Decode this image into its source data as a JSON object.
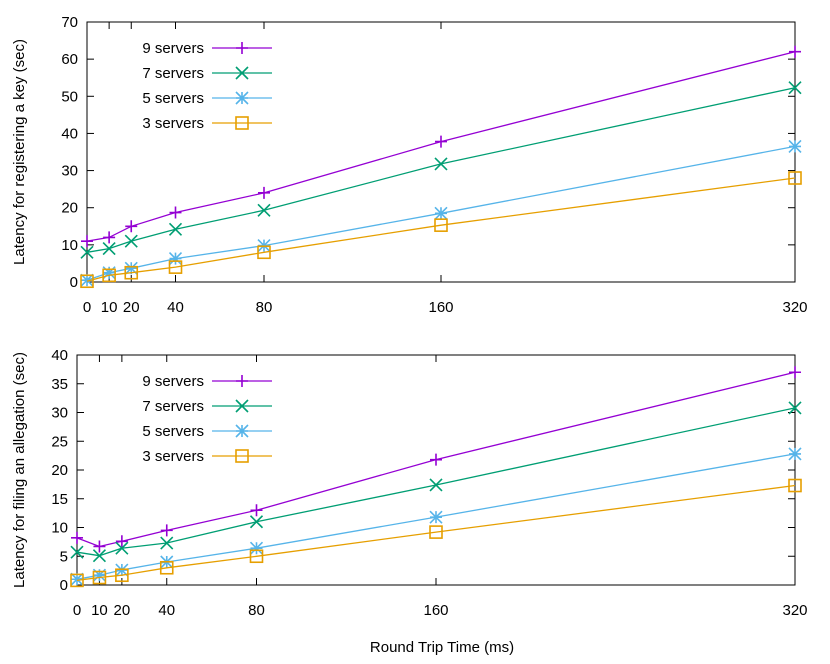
{
  "xlabel": "Round Trip Time (ms)",
  "colors": {
    "9 servers": "#9400d3",
    "7 servers": "#009e73",
    "5 servers": "#56b4e9",
    "3 servers": "#e69f00"
  },
  "chart_data": [
    {
      "type": "line",
      "title": "",
      "xlabel": "",
      "ylabel": "Latency for registering a key (sec)",
      "x": [
        0,
        10,
        20,
        40,
        80,
        160,
        320
      ],
      "x_ticks": [
        0,
        10,
        20,
        40,
        80,
        160,
        320
      ],
      "xlim": [
        0,
        320
      ],
      "ylim": [
        0,
        70
      ],
      "y_ticks": [
        0,
        10,
        20,
        30,
        40,
        50,
        60,
        70
      ],
      "grid": false,
      "legend_position": "top-left",
      "series": [
        {
          "name": "9 servers",
          "marker": "plus",
          "values": [
            11,
            12,
            15,
            18.7,
            24,
            37.8,
            62
          ]
        },
        {
          "name": "7 servers",
          "marker": "cross",
          "values": [
            8,
            9,
            11,
            14.2,
            19.3,
            31.8,
            52.3
          ]
        },
        {
          "name": "5 servers",
          "marker": "star",
          "values": [
            0.5,
            2.5,
            3.7,
            6.3,
            9.8,
            18.5,
            36.5
          ]
        },
        {
          "name": "3 servers",
          "marker": "square",
          "values": [
            0.2,
            1.8,
            2.5,
            4,
            8,
            15.3,
            28
          ]
        }
      ]
    },
    {
      "type": "line",
      "title": "",
      "xlabel": "Round Trip Time (ms)",
      "ylabel": "Latency for filing an allegation (sec)",
      "x": [
        0,
        10,
        20,
        40,
        80,
        160,
        320
      ],
      "x_ticks": [
        0,
        10,
        20,
        40,
        80,
        160,
        320
      ],
      "xlim": [
        0,
        320
      ],
      "ylim": [
        0,
        40
      ],
      "y_ticks": [
        0,
        5,
        10,
        15,
        20,
        25,
        30,
        35,
        40
      ],
      "grid": false,
      "legend_position": "top-left",
      "series": [
        {
          "name": "9 servers",
          "marker": "plus",
          "values": [
            8.2,
            6.7,
            7.6,
            9.5,
            13,
            21.8,
            37
          ]
        },
        {
          "name": "7 servers",
          "marker": "cross",
          "values": [
            5.7,
            5.1,
            6.4,
            7.3,
            11,
            17.4,
            30.8
          ]
        },
        {
          "name": "5 servers",
          "marker": "star",
          "values": [
            1,
            1.7,
            2.6,
            4,
            6.4,
            11.8,
            22.8
          ]
        },
        {
          "name": "3 servers",
          "marker": "square",
          "values": [
            0.8,
            1.3,
            1.7,
            3,
            5,
            9.2,
            17.3
          ]
        }
      ]
    }
  ]
}
